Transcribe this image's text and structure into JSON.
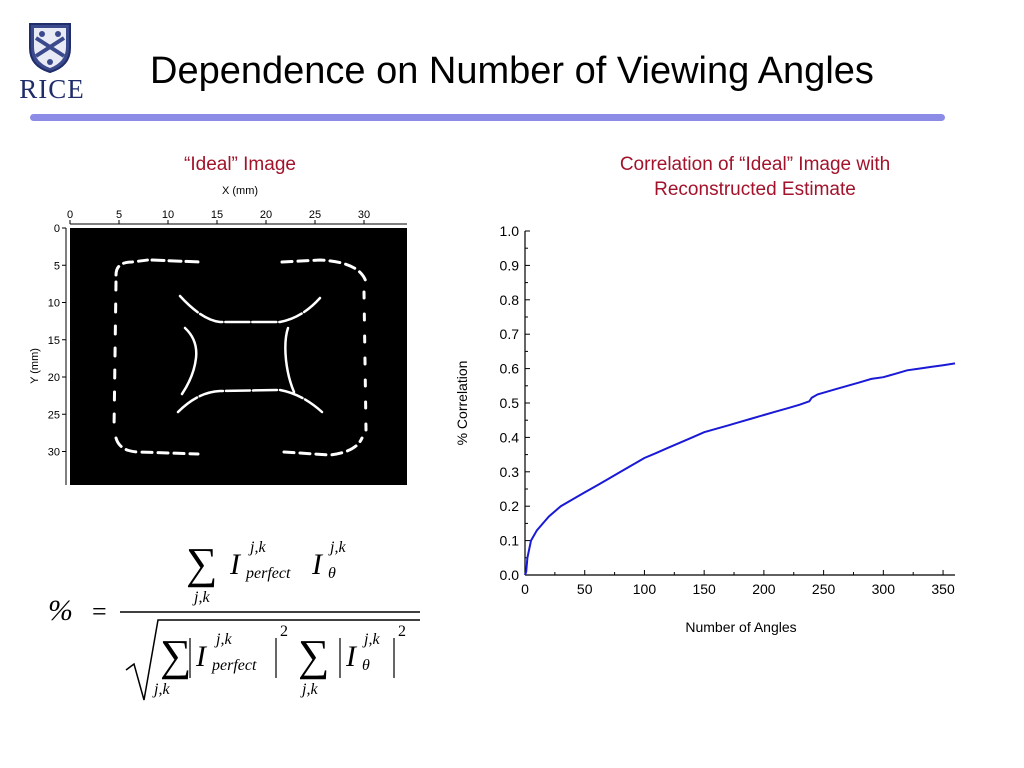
{
  "slide": {
    "title": "Dependence on Number of Viewing Angles",
    "logo_text": "RICE",
    "rule_color": "#8c8ce6"
  },
  "left_panel": {
    "heading": "“Ideal” Image",
    "xlabel": "X (mm)",
    "ylabel": "Y (mm)",
    "x_ticks": [
      "0",
      "5",
      "10",
      "15",
      "20",
      "25",
      "30"
    ],
    "y_ticks": [
      "0",
      "5",
      "10",
      "15",
      "20",
      "25",
      "30"
    ]
  },
  "right_panel": {
    "heading_line1": "Correlation of “Ideal” Image with",
    "heading_line2": "Reconstructed Estimate"
  },
  "formula": {
    "lhs": "%",
    "equals": "=",
    "numerator_sum": "∑",
    "sum_index": "j,k",
    "symbol": "I",
    "superscript": "j,k",
    "sub_perfect": "perfect",
    "sub_theta": "θ",
    "power": "2"
  },
  "chart_data": [
    {
      "type": "image",
      "title": "“Ideal” Image",
      "xlabel": "X (mm)",
      "ylabel": "Y (mm)",
      "xlim": [
        0,
        34
      ],
      "ylim": [
        0,
        34
      ],
      "x_ticks": [
        0,
        5,
        10,
        15,
        20,
        25,
        30
      ],
      "y_ticks": [
        0,
        5,
        10,
        15,
        20,
        25,
        30
      ]
    },
    {
      "type": "line",
      "title": "Correlation of “Ideal” Image with Reconstructed Estimate",
      "xlabel": "Number of Angles",
      "ylabel": "% Correlation",
      "xlim": [
        0,
        360
      ],
      "ylim": [
        0,
        1.0
      ],
      "x_ticks": [
        0,
        50,
        100,
        150,
        200,
        250,
        300,
        350
      ],
      "y_ticks": [
        "0.0",
        "0.1",
        "0.2",
        "0.3",
        "0.4",
        "0.5",
        "0.6",
        "0.7",
        "0.8",
        "0.9",
        "1.0"
      ],
      "line_color": "#1a1ad6",
      "series": [
        {
          "x": [
            1,
            2,
            5,
            10,
            15,
            20,
            30,
            40,
            50,
            60,
            70,
            80,
            90,
            100,
            110,
            120,
            130,
            140,
            150,
            160,
            170,
            180,
            190,
            200,
            210,
            220,
            230,
            238,
            240,
            245,
            250,
            260,
            270,
            280,
            290,
            300,
            310,
            320,
            330,
            340,
            350,
            360
          ],
          "y": [
            0.01,
            0.05,
            0.1,
            0.13,
            0.15,
            0.17,
            0.2,
            0.22,
            0.24,
            0.26,
            0.28,
            0.3,
            0.32,
            0.34,
            0.355,
            0.37,
            0.385,
            0.4,
            0.415,
            0.425,
            0.435,
            0.445,
            0.455,
            0.465,
            0.475,
            0.485,
            0.495,
            0.505,
            0.515,
            0.525,
            0.53,
            0.54,
            0.55,
            0.56,
            0.57,
            0.575,
            0.585,
            0.595,
            0.6,
            0.605,
            0.61,
            0.615
          ]
        }
      ]
    }
  ]
}
